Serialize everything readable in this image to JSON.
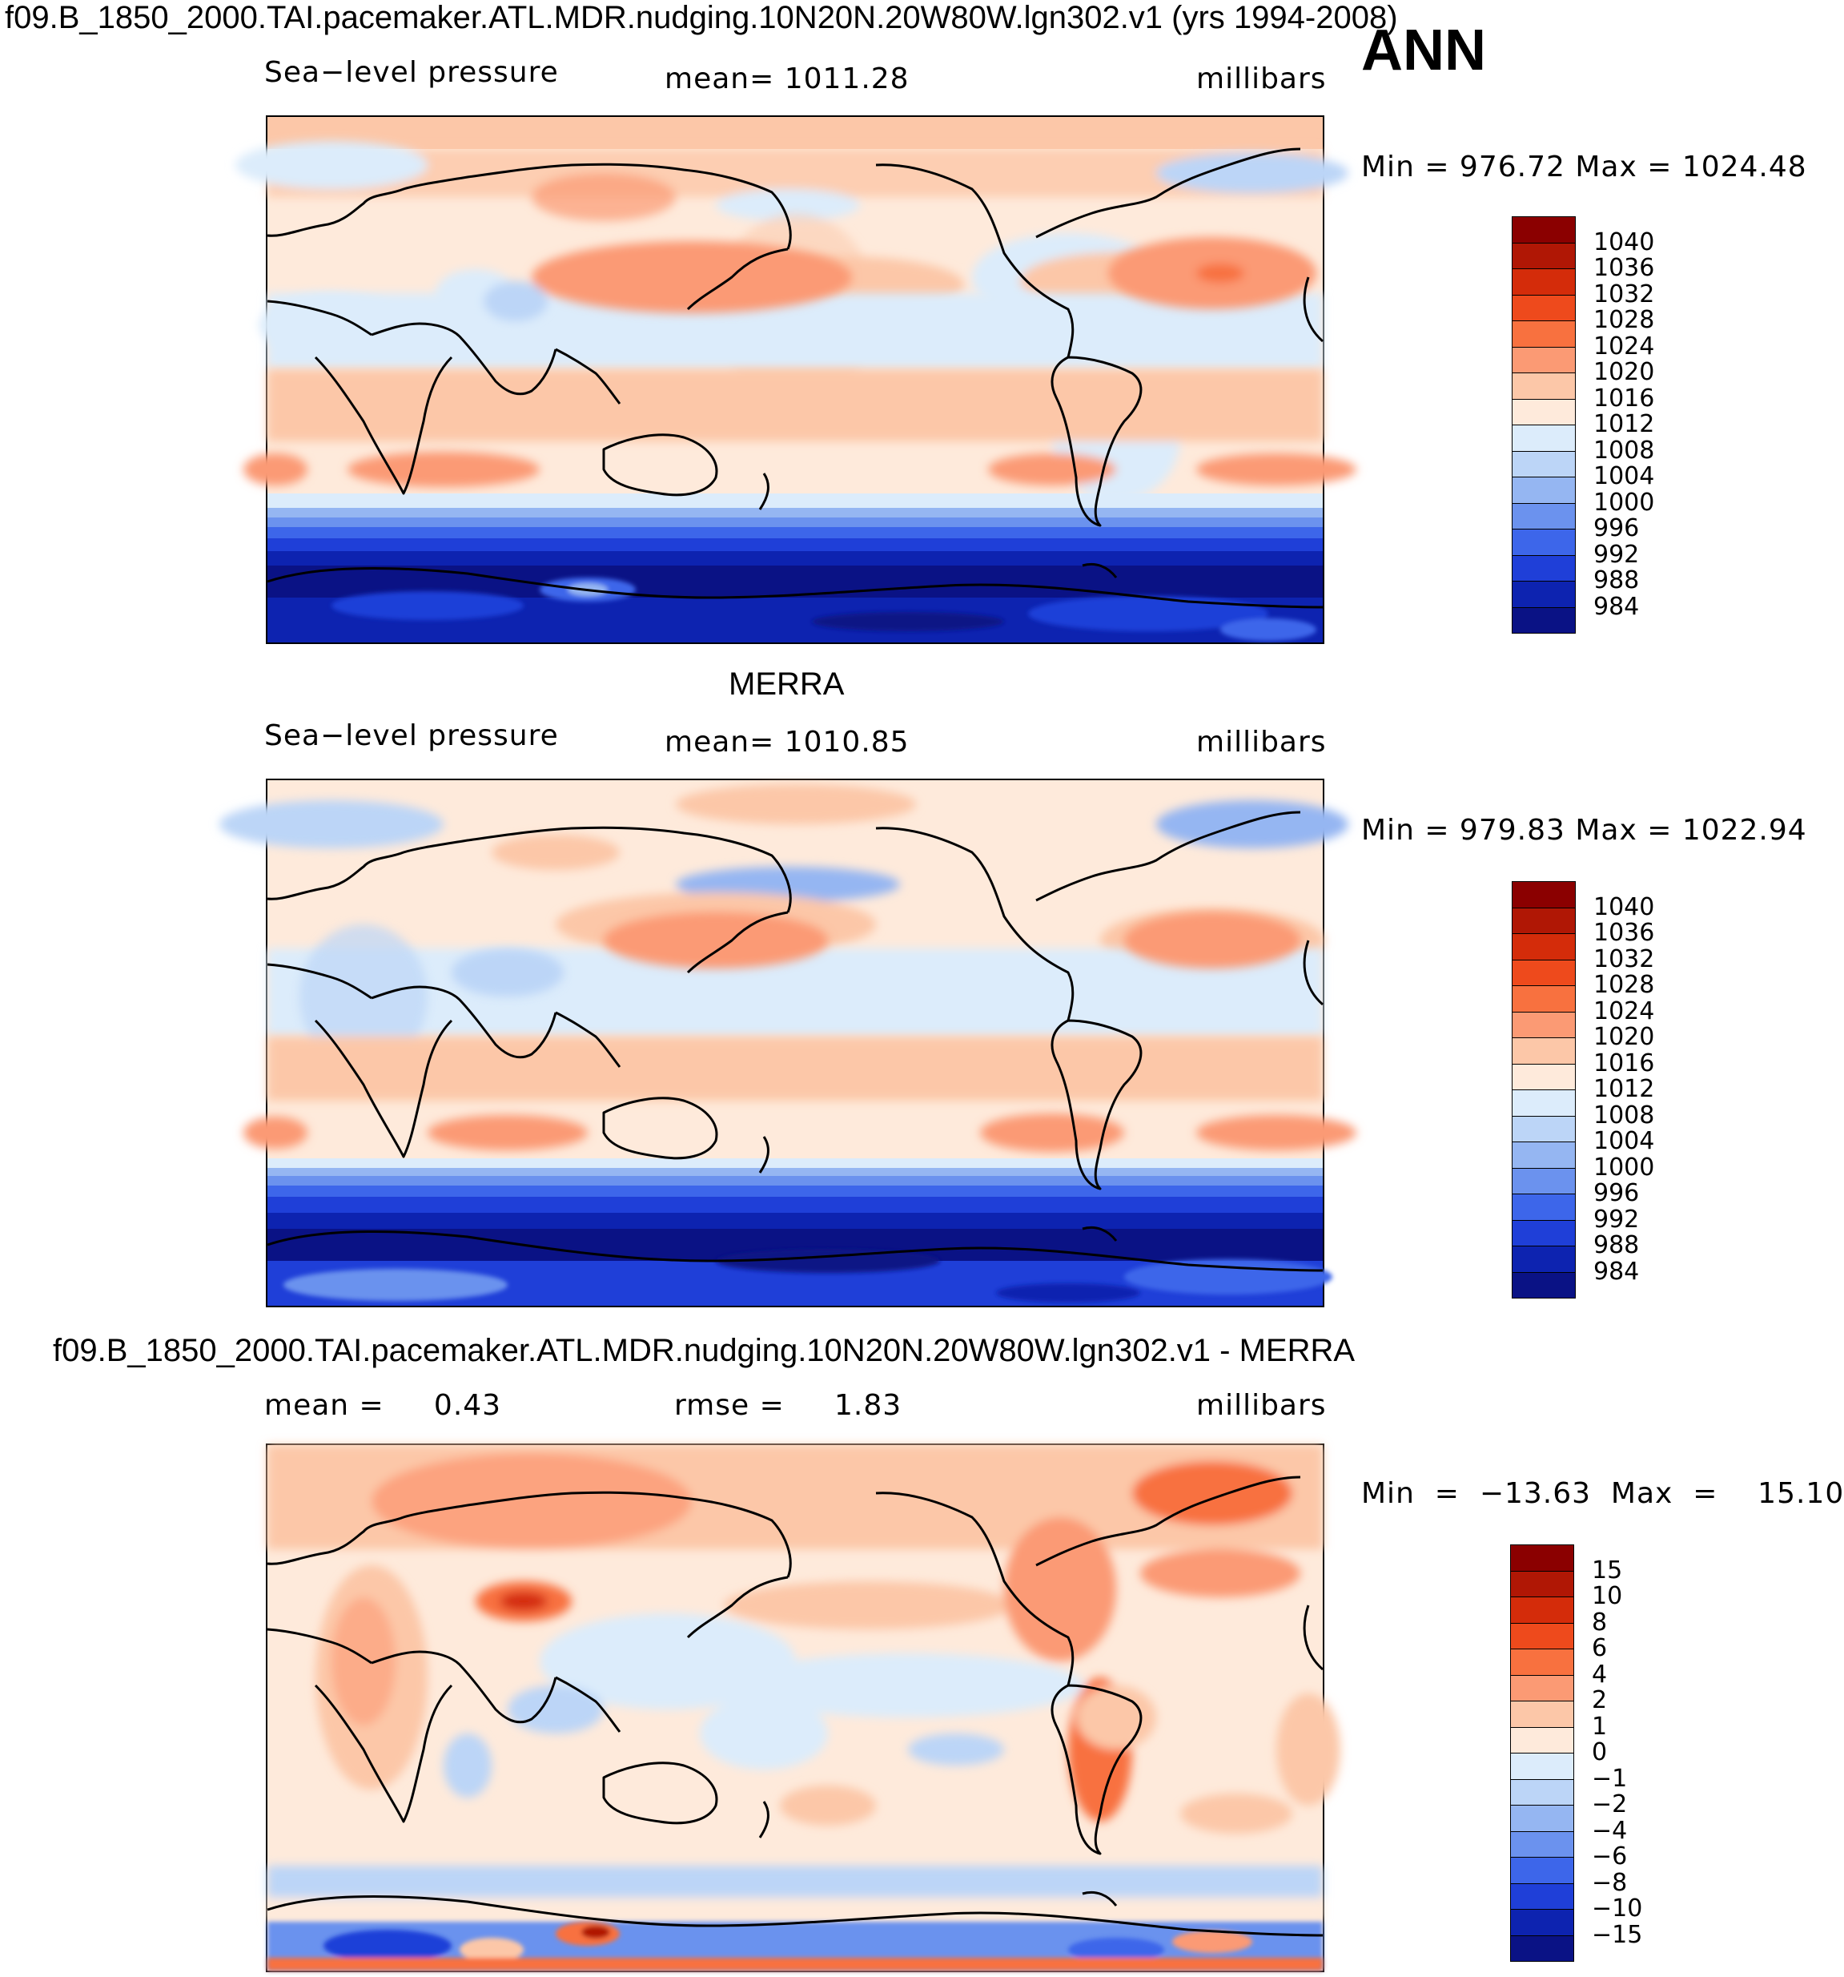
{
  "figure": {
    "top_title": "f09.B_1850_2000.TAI.pacemaker.ATL.MDR.nudging.10N20N.20W80W.lgn302.v1 (yrs 1994-2008)",
    "season": "ANN"
  },
  "panels": [
    {
      "id": "model",
      "heading": "",
      "left_label": "Sea−level pressure",
      "center_label": "mean=  1011.28",
      "right_label": "millibars",
      "minmax": "Min  =  976.72  Max  =  1024.48",
      "colorbar": {
        "labels": [
          "1040",
          "1036",
          "1032",
          "1028",
          "1024",
          "1020",
          "1016",
          "1012",
          "1008",
          "1004",
          "1000",
          "996",
          "992",
          "988",
          "984"
        ],
        "colors": [
          "#8b0000",
          "#b01705",
          "#d42c0a",
          "#ee4a1c",
          "#f8713f",
          "#fb9a74",
          "#fcc7a8",
          "#feeadb",
          "#dcecfb",
          "#bcd5f7",
          "#95b6f2",
          "#6b92ee",
          "#3d66ea",
          "#1f3fd8",
          "#0d23b0",
          "#0a1285"
        ]
      },
      "map_style": "slp_model"
    },
    {
      "id": "obs",
      "heading": "MERRA",
      "left_label": "Sea−level pressure",
      "center_label": "mean=  1010.85",
      "right_label": "millibars",
      "minmax": "Min  =  979.83  Max  =  1022.94",
      "colorbar": {
        "labels": [
          "1040",
          "1036",
          "1032",
          "1028",
          "1024",
          "1020",
          "1016",
          "1012",
          "1008",
          "1004",
          "1000",
          "996",
          "992",
          "988",
          "984"
        ],
        "colors": [
          "#8b0000",
          "#b01705",
          "#d42c0a",
          "#ee4a1c",
          "#f8713f",
          "#fb9a74",
          "#fcc7a8",
          "#feeadb",
          "#dcecfb",
          "#bcd5f7",
          "#95b6f2",
          "#6b92ee",
          "#3d66ea",
          "#1f3fd8",
          "#0d23b0",
          "#0a1285"
        ]
      },
      "map_style": "slp_obs"
    },
    {
      "id": "diff",
      "heading": "f09.B_1850_2000.TAI.pacemaker.ATL.MDR.nudging.10N20N.20W80W.lgn302.v1 - MERRA",
      "left_label": "mean =     0.43",
      "center_label": "rmse =     1.83",
      "right_label": "millibars",
      "minmax": "Min  =  −13.63  Max  =    15.10",
      "colorbar": {
        "labels": [
          "15",
          "10",
          "8",
          "6",
          "4",
          "2",
          "1",
          "0",
          "−1",
          "−2",
          "−4",
          "−6",
          "−8",
          "−10",
          "−15"
        ],
        "colors": [
          "#8b0000",
          "#b01705",
          "#d42c0a",
          "#ee4a1c",
          "#f8713f",
          "#fb9a74",
          "#fcc7a8",
          "#feeadb",
          "#dcecfb",
          "#bcd5f7",
          "#95b6f2",
          "#6b92ee",
          "#3d66ea",
          "#1f3fd8",
          "#0d23b0",
          "#0a1285"
        ]
      },
      "map_style": "diff"
    }
  ]
}
